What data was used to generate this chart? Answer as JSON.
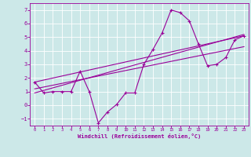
{
  "xlabel": "Windchill (Refroidissement éolien,°C)",
  "bg_color": "#cce8e8",
  "line_color": "#990099",
  "grid_color": "#ffffff",
  "xlim": [
    -0.5,
    23.5
  ],
  "ylim": [
    -1.5,
    7.5
  ],
  "yticks": [
    -1,
    0,
    1,
    2,
    3,
    4,
    5,
    6,
    7
  ],
  "xticks": [
    0,
    1,
    2,
    3,
    4,
    5,
    6,
    7,
    8,
    9,
    10,
    11,
    12,
    13,
    14,
    15,
    16,
    17,
    18,
    19,
    20,
    21,
    22,
    23
  ],
  "line1_x": [
    0,
    1,
    2,
    3,
    4,
    5,
    6,
    7,
    8,
    9,
    10,
    11,
    12,
    13,
    14,
    15,
    16,
    17,
    18,
    19,
    20,
    21,
    22,
    23
  ],
  "line1_y": [
    1.7,
    0.9,
    1.0,
    1.0,
    1.0,
    2.5,
    1.0,
    -1.3,
    -0.5,
    0.05,
    0.9,
    0.9,
    3.0,
    4.1,
    5.3,
    7.0,
    6.8,
    6.2,
    4.5,
    2.9,
    3.0,
    3.5,
    4.8,
    5.1
  ],
  "line2_x": [
    0,
    23
  ],
  "line2_y": [
    1.7,
    5.1
  ],
  "line3_x": [
    0,
    23
  ],
  "line3_y": [
    1.2,
    4.3
  ],
  "line4_x": [
    0,
    23
  ],
  "line4_y": [
    0.9,
    5.2
  ]
}
